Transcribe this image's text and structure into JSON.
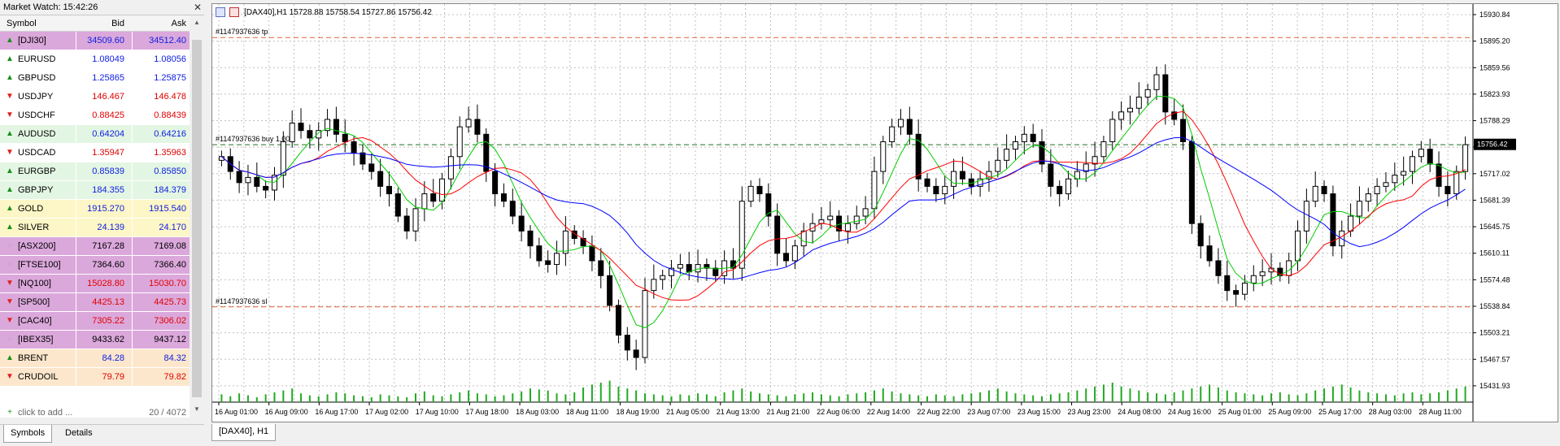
{
  "market_watch": {
    "title": "Market Watch: 15:42:26",
    "columns": {
      "symbol": "Symbol",
      "bid": "Bid",
      "ask": "Ask"
    },
    "rows": [
      {
        "symbol": "[DJI30]",
        "bid": "34509.60",
        "ask": "34512.40",
        "dir": "up",
        "bg": "#dba8db"
      },
      {
        "symbol": "EURUSD",
        "bid": "1.08049",
        "ask": "1.08056",
        "dir": "up",
        "bg": "#ffffff"
      },
      {
        "symbol": "GBPUSD",
        "bid": "1.25865",
        "ask": "1.25875",
        "dir": "up",
        "bg": "#ffffff"
      },
      {
        "symbol": "USDJPY",
        "bid": "146.467",
        "ask": "146.478",
        "dir": "down",
        "bg": "#ffffff"
      },
      {
        "symbol": "USDCHF",
        "bid": "0.88425",
        "ask": "0.88439",
        "dir": "down",
        "bg": "#ffffff"
      },
      {
        "symbol": "AUDUSD",
        "bid": "0.64204",
        "ask": "0.64216",
        "dir": "up",
        "bg": "#e3f6e3"
      },
      {
        "symbol": "USDCAD",
        "bid": "1.35947",
        "ask": "1.35963",
        "dir": "down",
        "bg": "#ffffff"
      },
      {
        "symbol": "EURGBP",
        "bid": "0.85839",
        "ask": "0.85850",
        "dir": "up",
        "bg": "#e3f6e3"
      },
      {
        "symbol": "GBPJPY",
        "bid": "184.355",
        "ask": "184.379",
        "dir": "up",
        "bg": "#e3f6e3"
      },
      {
        "symbol": "GOLD",
        "bid": "1915.270",
        "ask": "1915.540",
        "dir": "up",
        "bg": "#fdf6c6"
      },
      {
        "symbol": "SILVER",
        "bid": "24.139",
        "ask": "24.170",
        "dir": "up",
        "bg": "#fdf6c6"
      },
      {
        "symbol": "[ASX200]",
        "bid": "7167.28",
        "ask": "7169.08",
        "dir": "closed",
        "bg": "#dba8db"
      },
      {
        "symbol": "[FTSE100]",
        "bid": "7364.60",
        "ask": "7366.40",
        "dir": "closed",
        "bg": "#dba8db"
      },
      {
        "symbol": "[NQ100]",
        "bid": "15028.80",
        "ask": "15030.70",
        "dir": "down",
        "bg": "#dba8db"
      },
      {
        "symbol": "[SP500]",
        "bid": "4425.13",
        "ask": "4425.73",
        "dir": "down",
        "bg": "#dba8db"
      },
      {
        "symbol": "[CAC40]",
        "bid": "7305.22",
        "ask": "7306.02",
        "dir": "down",
        "bg": "#dba8db"
      },
      {
        "symbol": "[IBEX35]",
        "bid": "9433.62",
        "ask": "9437.12",
        "dir": "closed",
        "bg": "#dba8db"
      },
      {
        "symbol": "BRENT",
        "bid": "84.28",
        "ask": "84.32",
        "dir": "up",
        "bg": "#fde7cc"
      },
      {
        "symbol": "CRUDOIL",
        "bid": "79.79",
        "ask": "79.82",
        "dir": "down",
        "bg": "#fde7cc"
      }
    ],
    "add_label": "click to add ...",
    "count": "20 / 4072",
    "tabs": [
      "Symbols",
      "Details"
    ]
  },
  "chart": {
    "header": "[DAX40],H1  15728.88 15758.54 15727.86 15756.42",
    "tab_label": "[DAX40], H1",
    "colors": {
      "bull": "#000000",
      "bear": "#000000",
      "ma_fast": "#00cc00",
      "ma_mid": "#ff0000",
      "ma_slow": "#0000ff",
      "volume": "#22aa22",
      "grid": "#c0c0c0",
      "tp": "#e06030",
      "entry": "#207020",
      "sl": "#e06030"
    }
  },
  "chart_data": {
    "type": "candlestick",
    "symbol": "[DAX40]",
    "timeframe": "H1",
    "ohlc_current": {
      "open": "15728.88",
      "high": "15758.54",
      "low": "15727.86",
      "close": "15756.42"
    },
    "current_price_label": "15756.42",
    "yticks": [
      "15930.84",
      "15895.20",
      "15859.56",
      "15823.93",
      "15788.29",
      "15752.65",
      "15717.02",
      "15681.39",
      "15645.75",
      "15610.11",
      "15574.48",
      "15538.84",
      "15503.21",
      "15467.57",
      "15431.93"
    ],
    "ylim": [
      15410,
      15945
    ],
    "xticks": [
      "16 Aug 01:00",
      "16 Aug 09:00",
      "16 Aug 17:00",
      "17 Aug 02:00",
      "17 Aug 10:00",
      "17 Aug 18:00",
      "18 Aug 03:00",
      "18 Aug 11:00",
      "18 Aug 19:00",
      "21 Aug 05:00",
      "21 Aug 13:00",
      "21 Aug 21:00",
      "22 Aug 06:00",
      "22 Aug 14:00",
      "22 Aug 22:00",
      "23 Aug 07:00",
      "23 Aug 15:00",
      "23 Aug 23:00",
      "24 Aug 08:00",
      "24 Aug 16:00",
      "25 Aug 01:00",
      "25 Aug 09:00",
      "25 Aug 17:00",
      "28 Aug 03:00",
      "28 Aug 11:00"
    ],
    "levels": [
      {
        "label": "#1147937636 tp",
        "price": 15900
      },
      {
        "label": "#1147937636 buy 1.00",
        "price": 15756
      },
      {
        "label": "#1147937636 sl",
        "price": 15538
      }
    ],
    "close_path": [
      15740,
      15720,
      15705,
      15712,
      15700,
      15695,
      15715,
      15760,
      15785,
      15775,
      15765,
      15775,
      15790,
      15770,
      15760,
      15745,
      15730,
      15720,
      15700,
      15690,
      15660,
      15640,
      15670,
      15690,
      15680,
      15710,
      15740,
      15780,
      15790,
      15770,
      15720,
      15690,
      15680,
      15660,
      15640,
      15620,
      15600,
      15595,
      15610,
      15640,
      15630,
      15620,
      15600,
      15580,
      15540,
      15500,
      15480,
      15470,
      15560,
      15575,
      15580,
      15590,
      15595,
      15585,
      15595,
      15590,
      15580,
      15600,
      15590,
      15680,
      15700,
      15690,
      15660,
      15610,
      15600,
      15620,
      15640,
      15650,
      15655,
      15660,
      15640,
      15650,
      15660,
      15670,
      15720,
      15760,
      15780,
      15790,
      15770,
      15710,
      15700,
      15690,
      15700,
      15720,
      15710,
      15700,
      15710,
      15720,
      15735,
      15750,
      15760,
      15770,
      15760,
      15730,
      15700,
      15690,
      15710,
      15720,
      15730,
      15740,
      15760,
      15790,
      15800,
      15805,
      15820,
      15830,
      15850,
      15800,
      15790,
      15760,
      15650,
      15620,
      15600,
      15580,
      15560,
      15555,
      15570,
      15580,
      15585,
      15590,
      15580,
      15600,
      15640,
      15680,
      15700,
      15690,
      15620,
      15640,
      15660,
      15680,
      15690,
      15700,
      15705,
      15715,
      15720,
      15740,
      15750,
      15730,
      15700,
      15690,
      15720,
      15756
    ],
    "volume_path": [
      8,
      6,
      9,
      7,
      5,
      8,
      10,
      12,
      14,
      9,
      7,
      6,
      8,
      10,
      9,
      7,
      6,
      5,
      8,
      7,
      6,
      5,
      9,
      11,
      7,
      6,
      8,
      10,
      12,
      9,
      8,
      6,
      7,
      9,
      11,
      14,
      13,
      12,
      9,
      8,
      10,
      15,
      18,
      20,
      22,
      16,
      14,
      12,
      9,
      8,
      7,
      6,
      8,
      7,
      9,
      8,
      6,
      10,
      12,
      14,
      11,
      9,
      8,
      7,
      6,
      8,
      9,
      10,
      8,
      7,
      6,
      8,
      9,
      10,
      12,
      14,
      11,
      9,
      8,
      7,
      6,
      8,
      7,
      6,
      8,
      9,
      10,
      12,
      14,
      11,
      9,
      8,
      7,
      6,
      8,
      9,
      10,
      12,
      14,
      16,
      18,
      20,
      16,
      14,
      12,
      10,
      9,
      8,
      10,
      12,
      14,
      16,
      18,
      15,
      12,
      10,
      9,
      8,
      7,
      9,
      10,
      8,
      7,
      9,
      12,
      14,
      16,
      18,
      15,
      12,
      10,
      9,
      8,
      7,
      9,
      10,
      8,
      9,
      10,
      12,
      14,
      16
    ]
  }
}
